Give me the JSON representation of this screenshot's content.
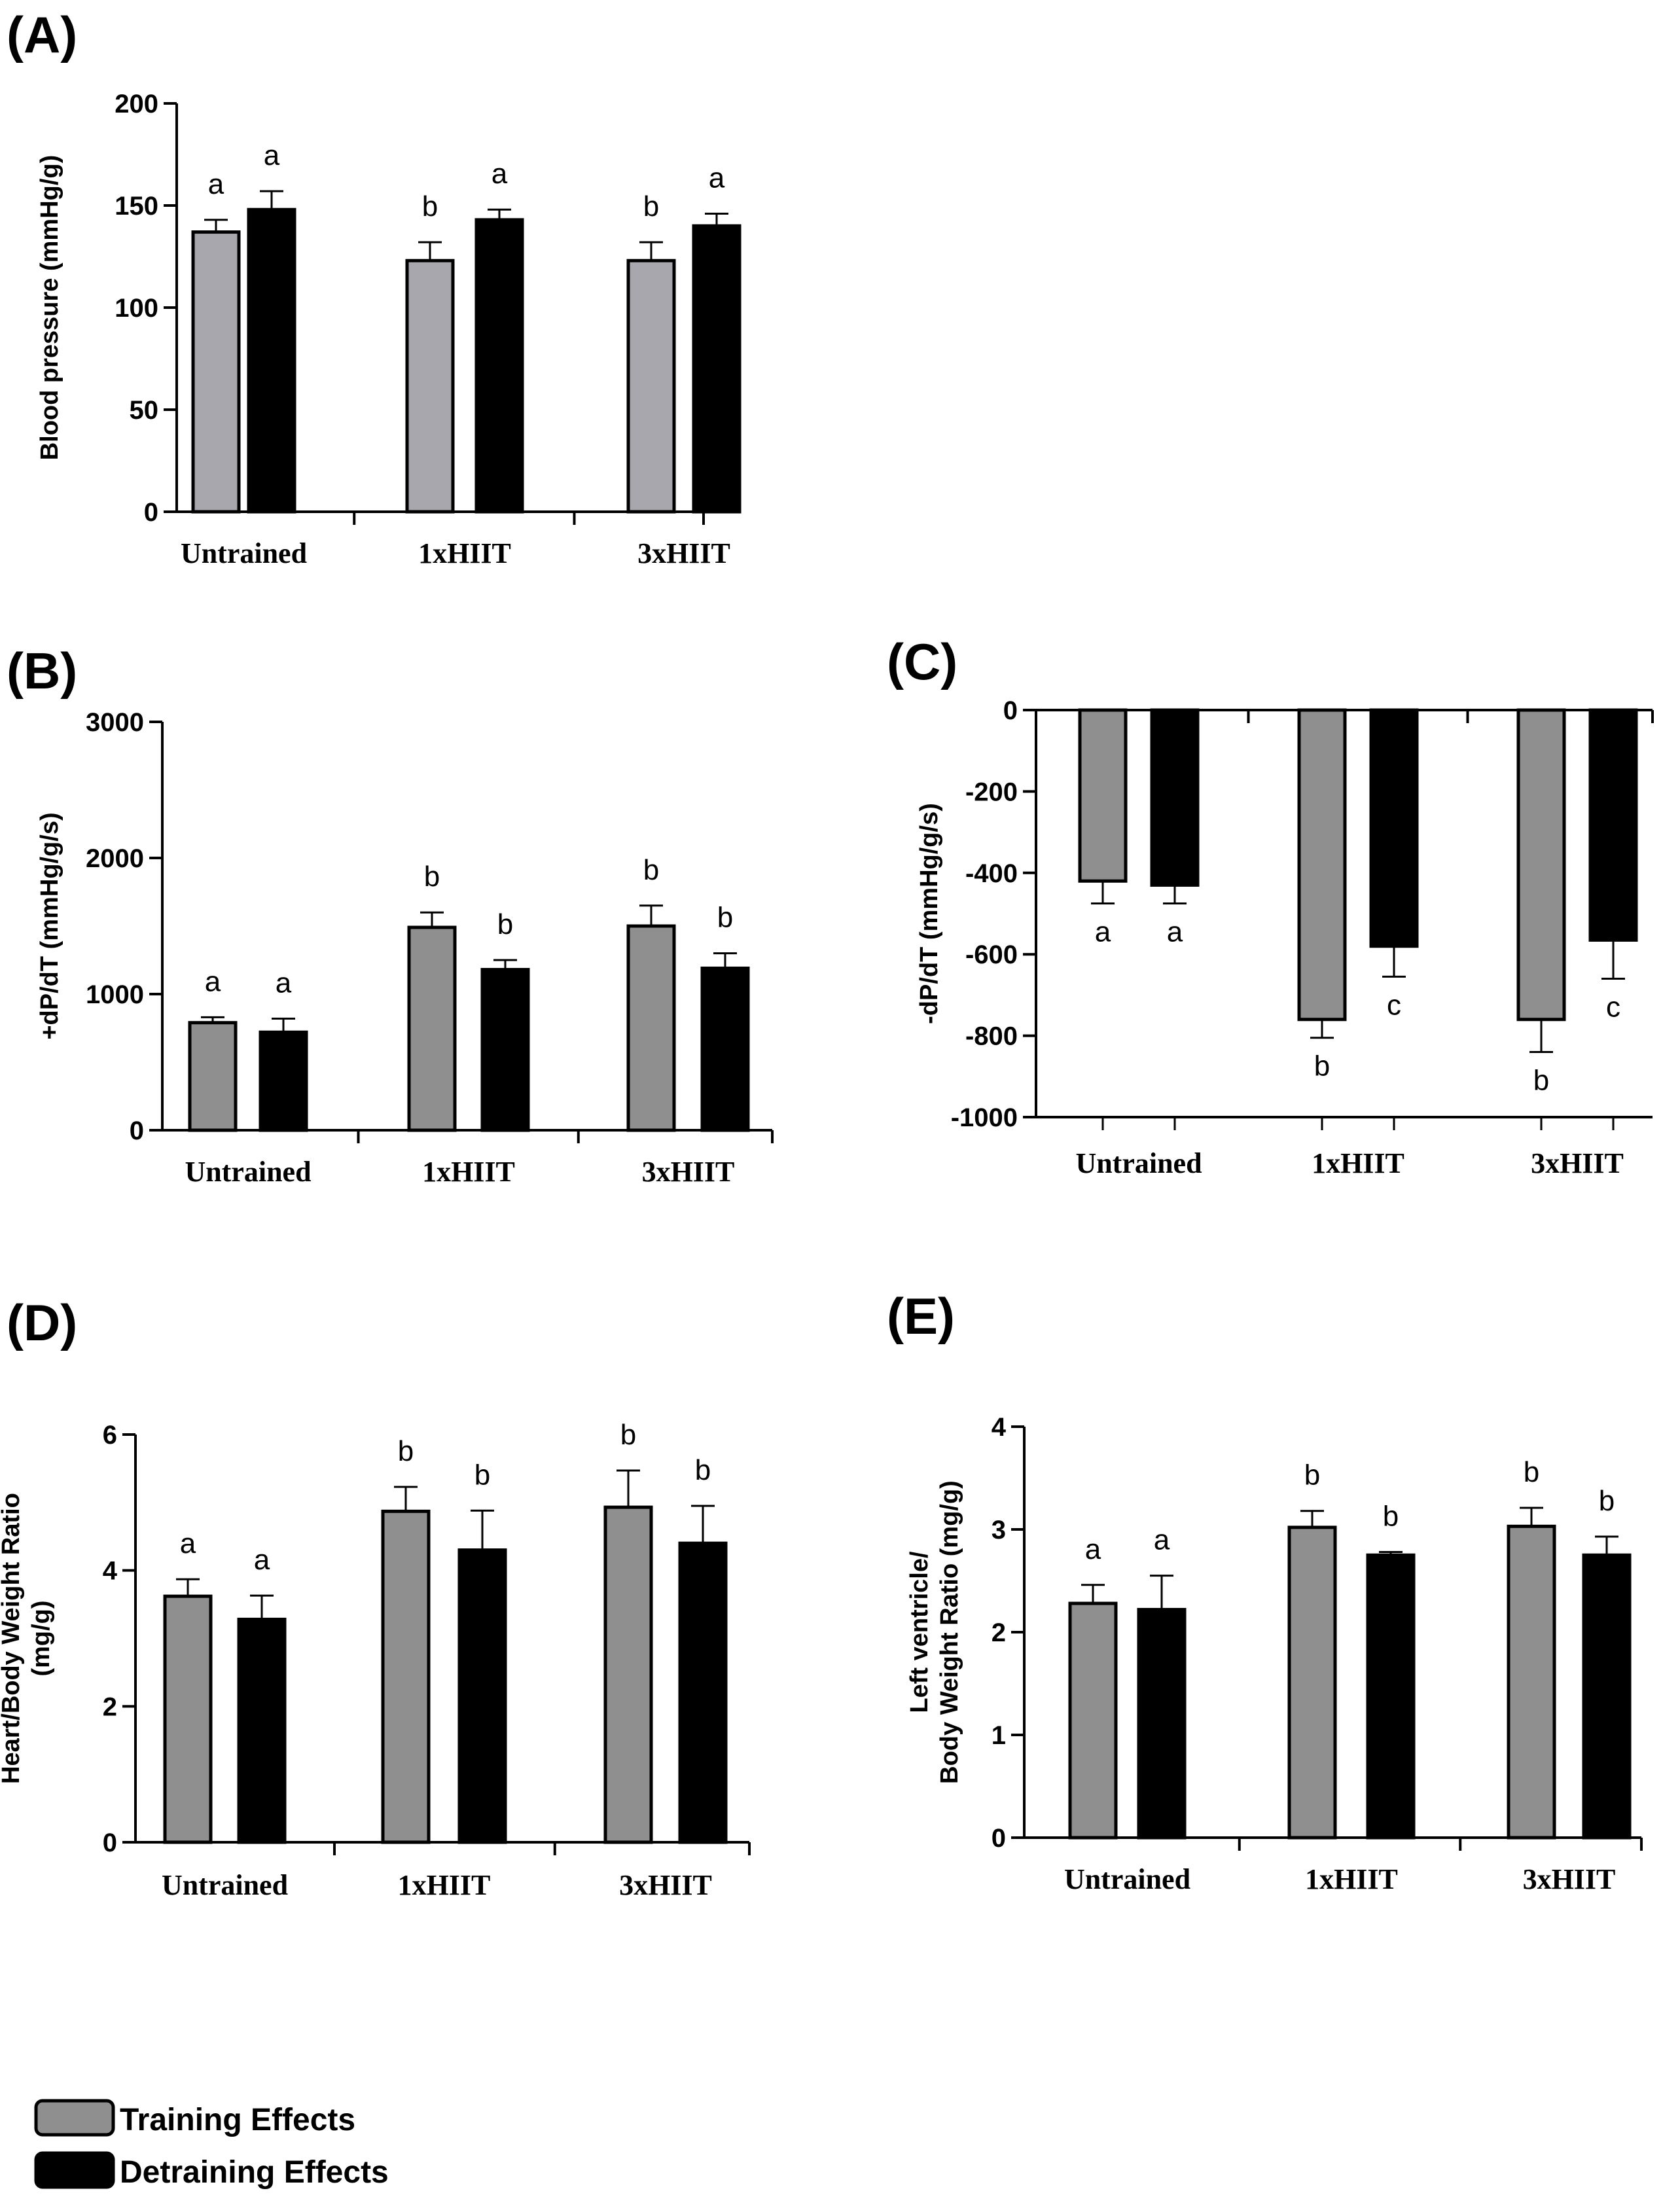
{
  "legend": {
    "series": [
      {
        "name": "Training Effects",
        "color": "#8f8f8f"
      },
      {
        "name": "Detraining Effects",
        "color": "#000000"
      }
    ]
  },
  "chart_data": [
    {
      "id": "A",
      "panel_label": "(A)",
      "type": "bar",
      "ylabel_lines": [
        "Blood pressure (mmHg/g)"
      ],
      "ylim": [
        0,
        200
      ],
      "yticks": [
        0,
        50,
        100,
        150,
        200
      ],
      "categories": [
        "Untrained",
        "1xHIIT",
        "3xHIIT"
      ],
      "series": [
        {
          "name": "Training Effects",
          "color": "#a7a7ad",
          "values": [
            137,
            123,
            123
          ],
          "errors": [
            6,
            9,
            9
          ],
          "letters": [
            "a",
            "b",
            "b"
          ]
        },
        {
          "name": "Detraining Effects",
          "color": "#000000",
          "values": [
            148,
            143,
            140
          ],
          "errors": [
            9,
            5,
            6
          ],
          "letters": [
            "a",
            "a",
            "a"
          ]
        }
      ]
    },
    {
      "id": "B",
      "panel_label": "(B)",
      "type": "bar",
      "ylabel_lines": [
        "+dP/dT (mmHg/g/s)"
      ],
      "ylim": [
        0,
        3000
      ],
      "yticks": [
        0,
        1000,
        2000,
        3000
      ],
      "categories": [
        "Untrained",
        "1xHIIT",
        "3xHIIT"
      ],
      "series": [
        {
          "name": "Training Effects",
          "color": "#8f8f8f",
          "values": [
            790,
            1490,
            1500
          ],
          "errors": [
            40,
            110,
            150
          ],
          "letters": [
            "a",
            "b",
            "b"
          ]
        },
        {
          "name": "Detraining Effects",
          "color": "#000000",
          "values": [
            720,
            1180,
            1190
          ],
          "errors": [
            100,
            70,
            110
          ],
          "letters": [
            "a",
            "b",
            "b"
          ]
        }
      ]
    },
    {
      "id": "C",
      "panel_label": "(C)",
      "type": "bar",
      "ylabel_lines": [
        "-dP/dT (mmHg/g/s)"
      ],
      "ylim": [
        -1000,
        0
      ],
      "yticks": [
        0,
        -200,
        -400,
        -600,
        -800,
        -1000
      ],
      "categories": [
        "Untrained",
        "1xHIIT",
        "3xHIIT"
      ],
      "series": [
        {
          "name": "Training Effects",
          "color": "#8f8f8f",
          "values": [
            -420,
            -760,
            -760
          ],
          "errors": [
            55,
            45,
            80
          ],
          "letters": [
            "a",
            "b",
            "b"
          ]
        },
        {
          "name": "Detraining Effects",
          "color": "#000000",
          "values": [
            -430,
            -580,
            -565
          ],
          "errors": [
            45,
            75,
            95
          ],
          "letters": [
            "a",
            "c",
            "c"
          ]
        }
      ]
    },
    {
      "id": "D",
      "panel_label": "(D)",
      "type": "bar",
      "ylabel_lines": [
        "Heart/Body Weight Ratio",
        "(mg/g)"
      ],
      "ylim": [
        0,
        6
      ],
      "yticks": [
        0,
        2,
        4,
        6
      ],
      "categories": [
        "Untrained",
        "1xHIIT",
        "3xHIIT"
      ],
      "series": [
        {
          "name": "Training Effects",
          "color": "#8f8f8f",
          "values": [
            3.62,
            4.87,
            4.93
          ],
          "errors": [
            0.25,
            0.36,
            0.54
          ],
          "letters": [
            "a",
            "b",
            "b"
          ]
        },
        {
          "name": "Detraining Effects",
          "color": "#000000",
          "values": [
            3.28,
            4.3,
            4.4
          ],
          "errors": [
            0.35,
            0.58,
            0.55
          ],
          "letters": [
            "a",
            "b",
            "b"
          ]
        }
      ]
    },
    {
      "id": "E",
      "panel_label": "(E)",
      "type": "bar",
      "ylabel_lines": [
        "Left ventricle/",
        "Body Weight Ratio (mg/g)"
      ],
      "ylim": [
        0,
        4
      ],
      "yticks": [
        0,
        1,
        2,
        3,
        4
      ],
      "categories": [
        "Untrained",
        "1xHIIT",
        "3xHIIT"
      ],
      "series": [
        {
          "name": "Training Effects",
          "color": "#8f8f8f",
          "values": [
            2.28,
            3.02,
            3.03
          ],
          "errors": [
            0.18,
            0.16,
            0.18
          ],
          "letters": [
            "a",
            "b",
            "b"
          ]
        },
        {
          "name": "Detraining Effects",
          "color": "#000000",
          "values": [
            2.22,
            2.75,
            2.75
          ],
          "errors": [
            0.33,
            0.03,
            0.18
          ],
          "letters": [
            "a",
            "b",
            "b"
          ]
        }
      ]
    }
  ]
}
